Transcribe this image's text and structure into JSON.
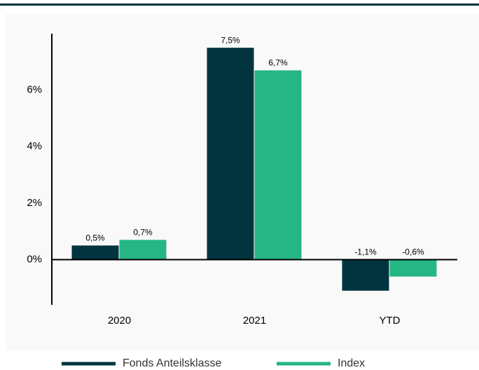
{
  "chart_data": {
    "type": "bar",
    "categories": [
      "2020",
      "2021",
      "YTD"
    ],
    "series": [
      {
        "name": "Fonds Anteilsklasse",
        "color": "#01343f",
        "values": [
          0.5,
          7.5,
          -1.1
        ],
        "value_labels": [
          "0,5%",
          "7,5%",
          "-1,1%"
        ]
      },
      {
        "name": "Index",
        "color": "#26b585",
        "values": [
          0.7,
          6.7,
          -0.6
        ],
        "value_labels": [
          "0,7%",
          "6,7%",
          "-0,6%"
        ]
      }
    ],
    "ylim": [
      -1.6,
      8
    ],
    "yticks": [
      {
        "value": 0,
        "label": "0%"
      },
      {
        "value": 2,
        "label": "2%"
      },
      {
        "value": 4,
        "label": "4%"
      },
      {
        "value": 6,
        "label": "6%"
      }
    ],
    "legend": "bottom"
  }
}
